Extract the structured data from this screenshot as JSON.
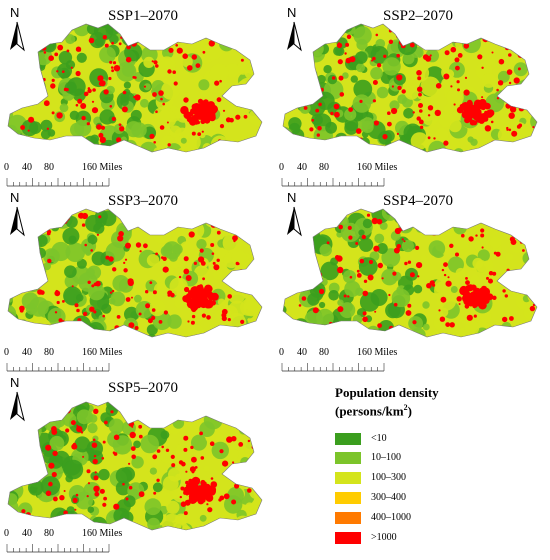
{
  "panels": [
    {
      "title": "SSP1–2070",
      "north": "N",
      "scale": {
        "labels": [
          "0",
          "40",
          "80",
          "160 Miles"
        ]
      }
    },
    {
      "title": "SSP2–2070",
      "north": "N",
      "scale": {
        "labels": [
          "0",
          "40",
          "80",
          "160 Miles"
        ]
      }
    },
    {
      "title": "SSP3–2070",
      "north": "N",
      "scale": {
        "labels": [
          "0",
          "40",
          "80",
          "160 Miles"
        ]
      }
    },
    {
      "title": "SSP4–2070",
      "north": "N",
      "scale": {
        "labels": [
          "0",
          "40",
          "80",
          "160 Miles"
        ]
      }
    },
    {
      "title": "SSP5–2070",
      "north": "N",
      "scale": {
        "labels": [
          "0",
          "40",
          "80",
          "160 Miles"
        ]
      }
    }
  ],
  "legend": {
    "title_line1": "Population density",
    "title_line2": "(persons/km",
    "title_sup": "2",
    "title_close": ")",
    "items": [
      {
        "label": "<10",
        "color": "#3b9e1e"
      },
      {
        "label": "10–100",
        "color": "#7cc42a"
      },
      {
        "label": "100–300",
        "color": "#d4e41c"
      },
      {
        "label": "300–400",
        "color": "#ffcc00"
      },
      {
        "label": "400–1000",
        "color": "#ff7a00"
      },
      {
        "label": ">1000",
        "color": "#ff0000"
      }
    ]
  }
}
